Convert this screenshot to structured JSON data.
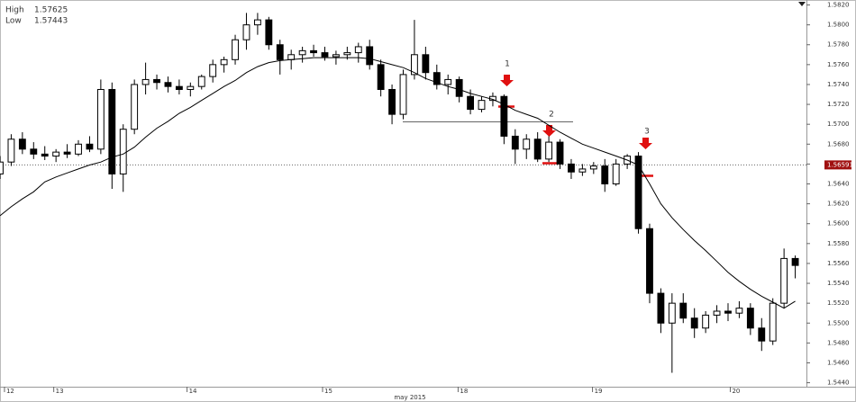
{
  "chart_data": {
    "type": "candlestick",
    "info": {
      "high_label": "High",
      "high": 1.57625,
      "low_label": "Low",
      "low": 1.57443
    },
    "x": [
      0,
      1,
      2,
      3,
      4,
      5,
      6,
      7,
      8,
      9,
      10,
      11,
      12,
      13,
      14,
      15,
      16,
      17,
      18,
      19,
      20,
      21,
      22,
      23,
      24,
      25,
      26,
      27,
      28,
      29,
      30,
      31,
      32,
      33,
      34,
      35,
      36,
      37,
      38,
      39,
      40,
      41,
      42,
      43,
      44,
      45,
      46,
      47,
      48,
      49,
      50,
      51,
      52,
      53,
      54,
      55,
      56,
      57,
      58,
      59,
      60,
      61,
      62,
      63,
      64,
      65,
      66,
      67,
      68,
      69,
      70,
      71
    ],
    "open": [
      1.565,
      1.5662,
      1.5685,
      1.5675,
      1.567,
      1.5668,
      1.5672,
      1.567,
      1.568,
      1.5675,
      1.5735,
      1.565,
      1.5695,
      1.574,
      1.5745,
      1.5742,
      1.5738,
      1.5735,
      1.5738,
      1.5748,
      1.576,
      1.5765,
      1.5785,
      1.58,
      1.5805,
      1.578,
      1.5765,
      1.577,
      1.5774,
      1.5772,
      1.5768,
      1.577,
      1.5772,
      1.5778,
      1.576,
      1.5735,
      1.571,
      1.575,
      1.577,
      1.5752,
      1.574,
      1.5745,
      1.5728,
      1.5715,
      1.5724,
      1.5728,
      1.5688,
      1.5675,
      1.5685,
      1.5665,
      1.5682,
      1.566,
      1.5652,
      1.5655,
      1.5658,
      1.564,
      1.566,
      1.5668,
      1.5595,
      1.553,
      1.55,
      1.552,
      1.5505,
      1.5495,
      1.5508,
      1.5512,
      1.551,
      1.5515,
      1.5495,
      1.5482,
      1.552,
      1.5565
    ],
    "high": [
      1.5668,
      1.569,
      1.5692,
      1.5682,
      1.5678,
      1.5675,
      1.568,
      1.5684,
      1.5688,
      1.5745,
      1.5742,
      1.57,
      1.5745,
      1.5762,
      1.575,
      1.5748,
      1.5745,
      1.5742,
      1.575,
      1.5765,
      1.5768,
      1.579,
      1.5812,
      1.5812,
      1.5808,
      1.5785,
      1.5775,
      1.5778,
      1.578,
      1.5778,
      1.5774,
      1.5778,
      1.5782,
      1.5785,
      1.5765,
      1.574,
      1.5755,
      1.5805,
      1.5778,
      1.576,
      1.575,
      1.5748,
      1.5735,
      1.5728,
      1.5732,
      1.573,
      1.5695,
      1.569,
      1.5692,
      1.5688,
      1.5685,
      1.5665,
      1.566,
      1.5662,
      1.5665,
      1.5665,
      1.567,
      1.5672,
      1.56,
      1.5535,
      1.553,
      1.553,
      1.5515,
      1.5512,
      1.5518,
      1.552,
      1.5522,
      1.552,
      1.5505,
      1.5525,
      1.5575,
      1.5568
    ],
    "low": [
      1.5645,
      1.5658,
      1.567,
      1.5665,
      1.5664,
      1.5662,
      1.5666,
      1.5668,
      1.5672,
      1.567,
      1.5635,
      1.5632,
      1.569,
      1.573,
      1.5735,
      1.5732,
      1.573,
      1.5728,
      1.5735,
      1.5742,
      1.5752,
      1.576,
      1.5775,
      1.579,
      1.5775,
      1.575,
      1.5755,
      1.5762,
      1.5768,
      1.5764,
      1.576,
      1.5765,
      1.5762,
      1.5755,
      1.5728,
      1.57,
      1.5705,
      1.5745,
      1.5745,
      1.5735,
      1.573,
      1.5722,
      1.571,
      1.5712,
      1.5718,
      1.568,
      1.566,
      1.5665,
      1.5662,
      1.5662,
      1.5655,
      1.5645,
      1.5648,
      1.565,
      1.5632,
      1.5638,
      1.5655,
      1.559,
      1.552,
      1.549,
      1.545,
      1.55,
      1.5485,
      1.549,
      1.55,
      1.5502,
      1.5505,
      1.5488,
      1.5472,
      1.5478,
      1.5515,
      1.5545
    ],
    "close": [
      1.5662,
      1.5685,
      1.5675,
      1.567,
      1.5668,
      1.5672,
      1.567,
      1.568,
      1.5675,
      1.5735,
      1.565,
      1.5695,
      1.574,
      1.5745,
      1.5742,
      1.5738,
      1.5735,
      1.5738,
      1.5748,
      1.576,
      1.5765,
      1.5785,
      1.58,
      1.5805,
      1.578,
      1.5765,
      1.577,
      1.5774,
      1.5772,
      1.5768,
      1.577,
      1.5772,
      1.5778,
      1.576,
      1.5735,
      1.571,
      1.575,
      1.577,
      1.5752,
      1.574,
      1.5745,
      1.5728,
      1.5715,
      1.5724,
      1.5728,
      1.5688,
      1.5675,
      1.5685,
      1.5665,
      1.5682,
      1.566,
      1.5652,
      1.5655,
      1.5658,
      1.564,
      1.566,
      1.5668,
      1.5595,
      1.553,
      1.55,
      1.552,
      1.5505,
      1.5495,
      1.5508,
      1.5512,
      1.551,
      1.5515,
      1.5495,
      1.5482,
      1.552,
      1.5565,
      1.5558
    ],
    "up_color": "#ffffff",
    "down_color": "#000000",
    "ma": {
      "color": "#000000",
      "values": [
        1.5608,
        1.5617,
        1.5625,
        1.5632,
        1.5642,
        1.5647,
        1.5651,
        1.5655,
        1.5659,
        1.5662,
        1.5667,
        1.567,
        1.5677,
        1.5687,
        1.5696,
        1.5703,
        1.5711,
        1.5717,
        1.5724,
        1.5731,
        1.5738,
        1.5744,
        1.5752,
        1.5758,
        1.5762,
        1.5764,
        1.5765,
        1.5766,
        1.5767,
        1.5767,
        1.5767,
        1.5767,
        1.5767,
        1.5766,
        1.5763,
        1.576,
        1.5757,
        1.5752,
        1.5746,
        1.5742,
        1.5738,
        1.5735,
        1.5731,
        1.5728,
        1.5725,
        1.572,
        1.5714,
        1.571,
        1.5706,
        1.5699,
        1.5692,
        1.5686,
        1.568,
        1.5676,
        1.5672,
        1.5668,
        1.5664,
        1.5659,
        1.564,
        1.562,
        1.5606,
        1.5594,
        1.5583,
        1.5573,
        1.5562,
        1.5551,
        1.5542,
        1.5534,
        1.5527,
        1.5521,
        1.5515,
        1.5522
      ]
    },
    "current_price": 1.56591,
    "current_price_color": "#a01010",
    "annotations": [
      "1",
      "2",
      "3"
    ],
    "x_axis_label": "may 2015",
    "xlim": [
      0,
      72
    ],
    "xticks": [
      {
        "value": 0.4,
        "label": "12"
      },
      {
        "value": 4.8,
        "label": "13"
      },
      {
        "value": 16.7,
        "label": "14"
      },
      {
        "value": 28.8,
        "label": "15"
      },
      {
        "value": 40.9,
        "label": "18"
      },
      {
        "value": 52.9,
        "label": "19"
      },
      {
        "value": 65.2,
        "label": "20"
      }
    ],
    "ylim": [
      1.5436,
      1.5825
    ],
    "yticks": [
      {
        "value": 1.544,
        "label": "1.5440"
      },
      {
        "value": 1.546,
        "label": "1.5460"
      },
      {
        "value": 1.548,
        "label": "1.5480"
      },
      {
        "value": 1.55,
        "label": "1.5500"
      },
      {
        "value": 1.552,
        "label": "1.5520"
      },
      {
        "value": 1.554,
        "label": "1.5540"
      },
      {
        "value": 1.556,
        "label": "1.5560"
      },
      {
        "value": 1.558,
        "label": "1.5580"
      },
      {
        "value": 1.56,
        "label": "1.5600"
      },
      {
        "value": 1.562,
        "label": "1.5620"
      },
      {
        "value": 1.564,
        "label": "1.5640"
      },
      {
        "value": 1.566,
        "label": "1.5660"
      },
      {
        "value": 1.568,
        "label": "1.5680"
      },
      {
        "value": 1.57,
        "label": "1.5700"
      },
      {
        "value": 1.572,
        "label": "1.5720"
      },
      {
        "value": 1.574,
        "label": "1.5740"
      },
      {
        "value": 1.576,
        "label": "1.5760"
      },
      {
        "value": 1.578,
        "label": "1.5780"
      },
      {
        "value": 1.58,
        "label": "1.5800"
      },
      {
        "value": 1.582,
        "label": "1.5820"
      }
    ]
  }
}
